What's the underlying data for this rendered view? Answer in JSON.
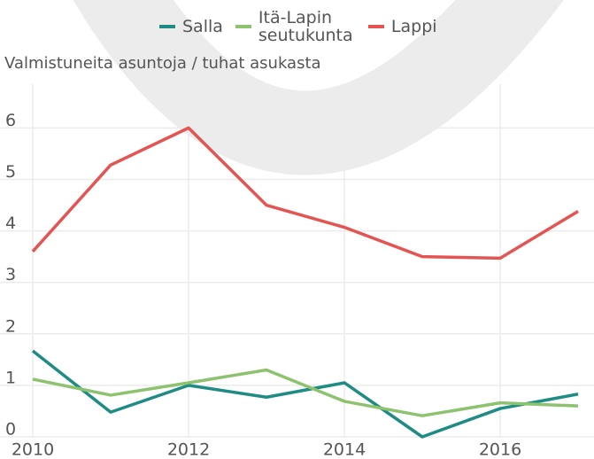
{
  "chart_data": {
    "type": "line",
    "y_label": "Valmistuneita asuntoja / tuhat asukasta",
    "x": [
      2010,
      2011,
      2012,
      2013,
      2014,
      2015,
      2016,
      2017
    ],
    "series": [
      {
        "name": "Salla",
        "color": "#1e8c84",
        "values": [
          1.67,
          0.48,
          1.0,
          0.77,
          1.05,
          0.0,
          0.55,
          0.83
        ]
      },
      {
        "name": "Itä-Lapin seutukunta",
        "color": "#8dc26f",
        "values": [
          1.12,
          0.81,
          1.05,
          1.3,
          0.69,
          0.41,
          0.66,
          0.6
        ]
      },
      {
        "name": "Lappi",
        "color": "#e35452",
        "values": [
          3.6,
          5.28,
          6.0,
          4.5,
          4.07,
          3.5,
          3.47,
          4.38
        ]
      }
    ],
    "xlim": [
      2010,
      2017
    ],
    "xticks": [
      2010,
      2012,
      2014,
      2016
    ],
    "ylim": [
      0,
      6.85
    ],
    "yticks": [
      0,
      1,
      2,
      3,
      4,
      5,
      6
    ],
    "grid": true
  }
}
